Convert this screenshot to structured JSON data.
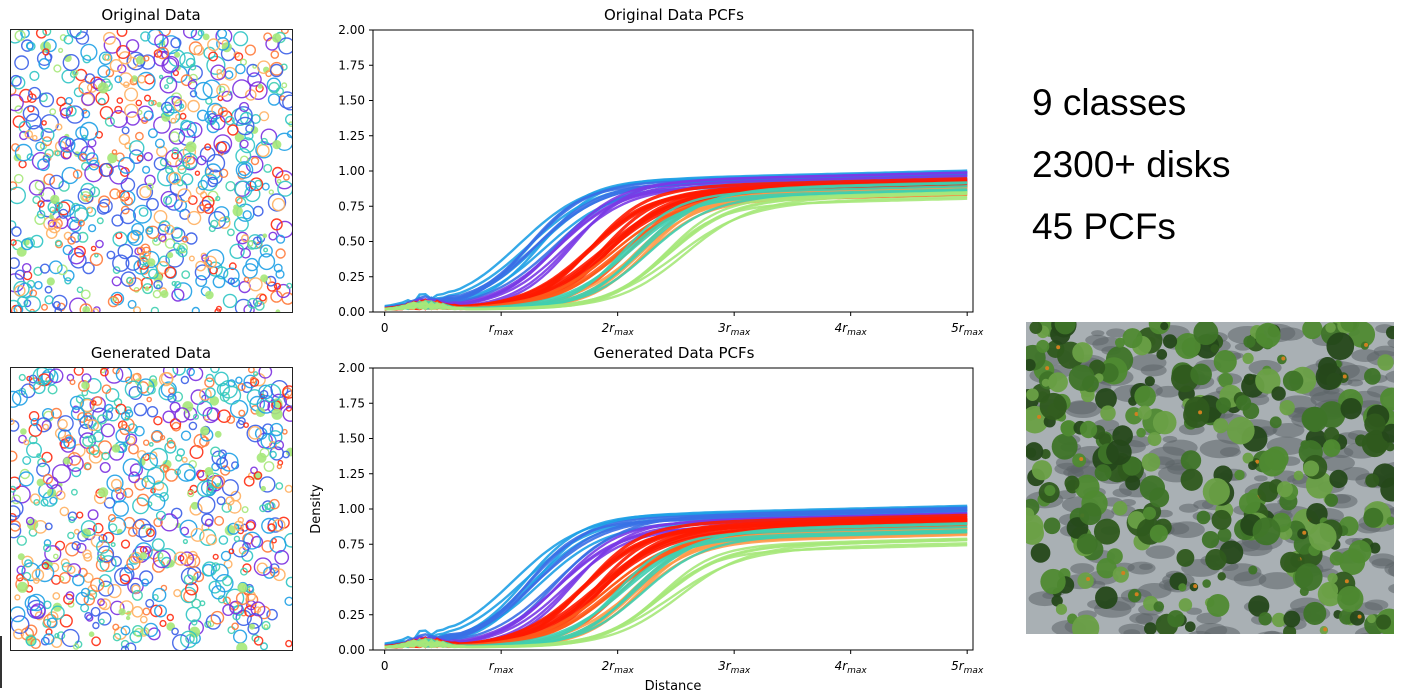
{
  "chart_data": [
    {
      "type": "scatter",
      "title": "Original Data",
      "description_points": "disk distribution, 9 classes (colored circles)"
    },
    {
      "type": "line",
      "title": "Original Data PCFs",
      "xlabel": "",
      "ylabel": "",
      "x_ticks": [
        "0",
        "r_max",
        "2r_max",
        "3r_max",
        "4r_max",
        "5r_max"
      ],
      "y_ticks": [
        "0.00",
        "0.25",
        "0.50",
        "0.75",
        "1.00",
        "1.25",
        "1.50",
        "1.75",
        "2.00"
      ],
      "ylim": [
        0,
        2
      ],
      "xlim": [
        -0.1,
        5.05
      ],
      "series_groups": [
        {
          "color": "#1ea0e6",
          "rise_at": 0.9,
          "plateau": 0.9
        },
        {
          "color": "#3a6fe6",
          "rise_at": 1.0,
          "plateau": 0.88
        },
        {
          "color": "#7a3ae6",
          "rise_at": 1.2,
          "plateau": 0.9
        },
        {
          "color": "#ff1a00",
          "rise_at": 1.5,
          "plateau": 0.84
        },
        {
          "color": "#ff5a1a",
          "rise_at": 1.7,
          "plateau": 0.8
        },
        {
          "color": "#ff9a4a",
          "rise_at": 1.9,
          "plateau": 0.78
        },
        {
          "color": "#3ecfb0",
          "rise_at": 1.8,
          "plateau": 0.82
        },
        {
          "color": "#a6e87a",
          "rise_at": 2.1,
          "plateau": 0.74
        }
      ]
    },
    {
      "type": "scatter",
      "title": "Generated Data"
    },
    {
      "type": "line",
      "title": "Generated Data PCFs",
      "xlabel": "Distance",
      "ylabel": "Density",
      "x_ticks": [
        "0",
        "r_max",
        "2r_max",
        "3r_max",
        "4r_max",
        "5r_max"
      ],
      "y_ticks": [
        "0.00",
        "0.25",
        "0.50",
        "0.75",
        "1.00",
        "1.25",
        "1.50",
        "1.75",
        "2.00"
      ],
      "ylim": [
        0,
        2
      ],
      "xlim": [
        -0.1,
        5.05
      ],
      "series_groups": [
        {
          "color": "#1ea0e6",
          "rise_at": 0.85,
          "plateau": 0.92
        },
        {
          "color": "#3a6fe6",
          "rise_at": 1.0,
          "plateau": 0.9
        },
        {
          "color": "#7a3ae6",
          "rise_at": 1.2,
          "plateau": 0.88
        },
        {
          "color": "#ff1a00",
          "rise_at": 1.45,
          "plateau": 0.85
        },
        {
          "color": "#ff5a1a",
          "rise_at": 1.65,
          "plateau": 0.8
        },
        {
          "color": "#ff9a4a",
          "rise_at": 1.85,
          "plateau": 0.76
        },
        {
          "color": "#3ecfb0",
          "rise_at": 1.75,
          "plateau": 0.8
        },
        {
          "color": "#a6e87a",
          "rise_at": 2.05,
          "plateau": 0.68
        }
      ]
    }
  ],
  "titles": {
    "original": "Original Data",
    "generated": "Generated Data",
    "original_pcf": "Original Data PCFs",
    "generated_pcf": "Generated Data PCFs"
  },
  "axis": {
    "ylabel": "Density",
    "xlabel": "Distance",
    "x_tick_base": [
      "0",
      "r",
      "2r",
      "3r",
      "4r",
      "5r"
    ],
    "x_tick_sub": "max",
    "y_ticks": [
      "0.00",
      "0.25",
      "0.50",
      "0.75",
      "1.00",
      "1.25",
      "1.50",
      "1.75",
      "2.00"
    ]
  },
  "facts": {
    "line1": "9 classes",
    "line2": "2300+ disks",
    "line3": "45 PCFs"
  },
  "colors": {
    "palette": [
      "#7b2fe0",
      "#3a5ee8",
      "#1ea0e6",
      "#2ec4c4",
      "#3ecfb0",
      "#a6e87a",
      "#ffb060",
      "#ff7a3a",
      "#ff2a10"
    ]
  }
}
